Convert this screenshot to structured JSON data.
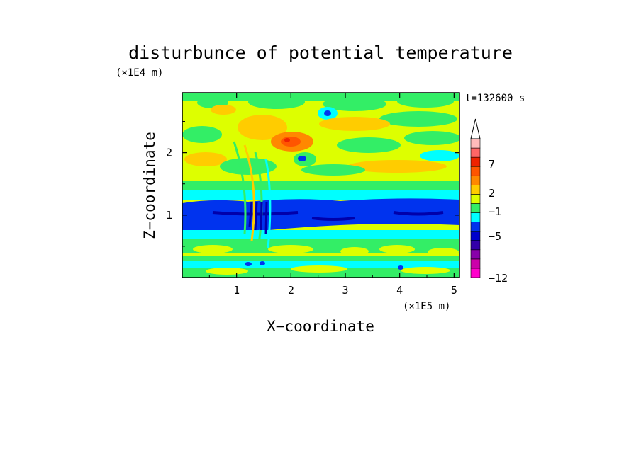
{
  "chart_data": {
    "type": "heatmap",
    "title": "disturbunce of potential temperature",
    "time_label": "t=132600 s",
    "xlabel": "X−coordinate",
    "ylabel": "Z−coordinate",
    "x_unit": "(×1E5 m)",
    "y_unit": "(×1E4 m)",
    "xlim": [
      0,
      5.1
    ],
    "ylim": [
      0,
      2.96
    ],
    "xticks": [
      1,
      2,
      3,
      4,
      5
    ],
    "yticks": [
      1,
      2
    ],
    "xtick_labels": [
      "1",
      "2",
      "3",
      "4",
      "5"
    ],
    "ytick_labels": [
      "1",
      "2"
    ],
    "colorbar": {
      "labeled_levels": [
        7,
        2,
        -1,
        -5,
        -12
      ],
      "labels": [
        "7",
        "2",
        "−1",
        "−5",
        "−12"
      ],
      "colors_bottom_to_top": [
        "#ff00cc",
        "#cc00aa",
        "#8800aa",
        "#3300aa",
        "#0000cc",
        "#0033ee",
        "#00ffff",
        "#33ee66",
        "#ddff00",
        "#ffcc00",
        "#ff8800",
        "#ff5500",
        "#ee2200",
        "#ff6666",
        "#ffbbbb"
      ],
      "extend_top_color": "#ffffff"
    },
    "z_bands": [
      {
        "z_range": [
          0.0,
          0.25
        ],
        "dominant_level": "-1 to 0",
        "notes": "cyan/green with blue spots near ground"
      },
      {
        "z_range": [
          0.25,
          0.45
        ],
        "dominant_level": "0 to 2",
        "notes": "alternating yellow and green cells"
      },
      {
        "z_range": [
          0.45,
          0.75
        ],
        "dominant_level": "-1",
        "notes": "cyan/green layer"
      },
      {
        "z_range": [
          0.75,
          1.25
        ],
        "dominant_level": "-5",
        "notes": "blue layer with dark-blue streaks"
      },
      {
        "z_range": [
          1.25,
          1.55
        ],
        "dominant_level": "-1",
        "notes": "cyan/green layer with wave pattern near x=1.5"
      },
      {
        "z_range": [
          1.55,
          2.96
        ],
        "dominant_level": "0 to 3",
        "notes": "yellow/orange/green gravity wave field"
      }
    ]
  }
}
